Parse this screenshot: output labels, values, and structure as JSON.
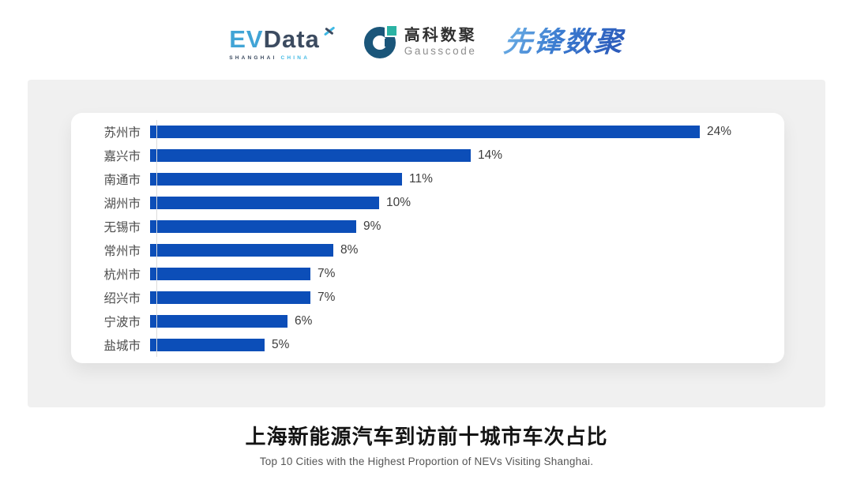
{
  "header": {
    "evdata": {
      "ev": "EV",
      "data": "Data",
      "tagline_left": "SHANGHAI",
      "tagline_right": "CHINA"
    },
    "gausscode": {
      "name_cn": "高科数聚",
      "name_en": "Gausscode"
    },
    "xianfeng": {
      "name_cn": "先锋数聚"
    }
  },
  "chart_data": {
    "type": "bar",
    "orientation": "horizontal",
    "title": "上海新能源汽车到访前十城市车次占比",
    "subtitle": "Top 10 Cities with the Highest Proportion of  NEVs Visiting Shanghai.",
    "categories": [
      "苏州市",
      "嘉兴市",
      "南通市",
      "湖州市",
      "无锡市",
      "常州市",
      "杭州市",
      "绍兴市",
      "宁波市",
      "盐城市"
    ],
    "values": [
      24,
      14,
      11,
      10,
      9,
      8,
      7,
      7,
      6,
      5
    ],
    "value_labels": [
      "24%",
      "14%",
      "11%",
      "10%",
      "9%",
      "8%",
      "7%",
      "7%",
      "6%",
      "5%"
    ],
    "unit": "%",
    "xlim": [
      0,
      24
    ],
    "grid": false,
    "legend": false,
    "bar_color": "#0c4eb8",
    "axis_line_color": "#dcdcdc",
    "label_color": "#4c4c4c",
    "value_label_color": "#3d3d3d"
  },
  "footer": {
    "title": "上海新能源汽车到访前十城市车次占比",
    "subtitle": "Top 10 Cities with the Highest Proportion of  NEVs Visiting Shanghai."
  }
}
